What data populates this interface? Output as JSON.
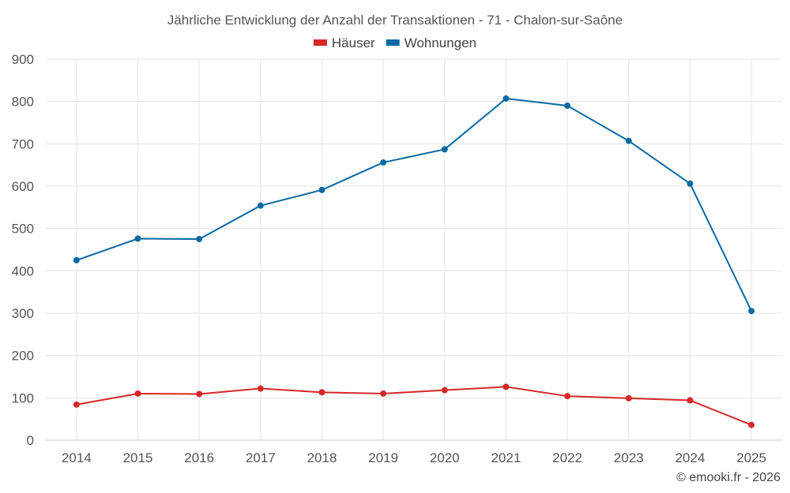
{
  "chart_data": {
    "type": "line",
    "title": "Jährliche Entwicklung der Anzahl der Transaktionen - 71 - Chalon-sur-Saône",
    "categories": [
      "2014",
      "2015",
      "2016",
      "2017",
      "2018",
      "2019",
      "2020",
      "2021",
      "2022",
      "2023",
      "2024",
      "2025"
    ],
    "series": [
      {
        "name": "Häuser",
        "color": "#d62728",
        "values": [
          84,
          110,
          109,
          122,
          113,
          110,
          118,
          126,
          104,
          99,
          94,
          36
        ]
      },
      {
        "name": "Wohnungen",
        "color": "#0a6aa1",
        "values": [
          425,
          476,
          475,
          554,
          591,
          656,
          687,
          807,
          790,
          707,
          606,
          305
        ]
      }
    ],
    "ylim": [
      0,
      900
    ],
    "yticks": [
      0,
      100,
      200,
      300,
      400,
      500,
      600,
      700,
      800,
      900
    ],
    "xlabel": "",
    "ylabel": "",
    "grid": true,
    "legend": "top-center"
  },
  "credit": "© emooki.fr - 2026"
}
